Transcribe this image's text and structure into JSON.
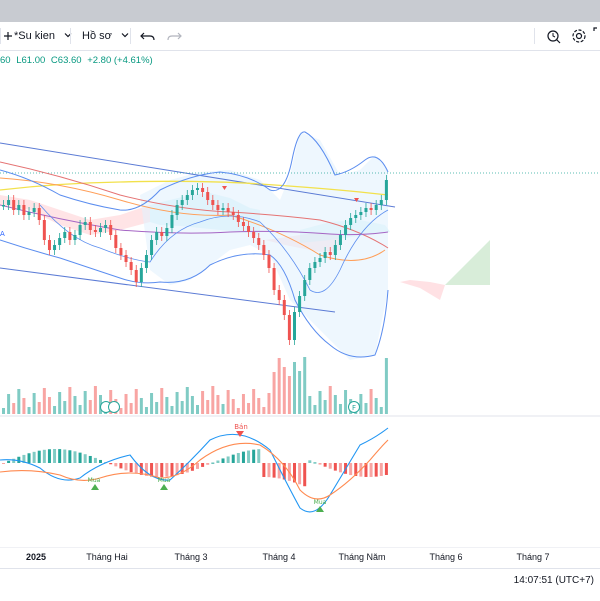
{
  "toolbar": {
    "events_label": "*Su kien",
    "profile_label": "Hồ sơ",
    "icons": [
      "plus-icon",
      "chevron-down-icon",
      "undo-icon",
      "redo-icon",
      "snapshot-icon",
      "settings-icon",
      "fullscreen-icon"
    ]
  },
  "ohlc": {
    "open_tail": "60",
    "low": "L61.00",
    "close": "C63.60",
    "change": "+2.80 (+4.61%)"
  },
  "xaxis": {
    "labels": [
      "2025",
      "Tháng Hai",
      "Tháng 3",
      "Tháng 4",
      "Tháng Năm",
      "Tháng 6",
      "Tháng 7"
    ]
  },
  "annotations": {
    "sell_label": "Bán",
    "buy_label": "Mua",
    "fin_badge": "F"
  },
  "clock": "14:07:51 (UTC+7)",
  "colors": {
    "up": "#26a69a",
    "down": "#ef5350",
    "accent": "#2962ff",
    "yellow": "#f2e14c"
  },
  "chart_data": {
    "type": "line",
    "title": "",
    "xlabel": "",
    "ylabel": "",
    "x": [
      "2025",
      "Tháng Hai",
      "Tháng 3",
      "Tháng 4",
      "Tháng Năm",
      "Tháng 6",
      "Tháng 7"
    ],
    "last_close": 63.6,
    "low": 61.0,
    "change": 2.8,
    "change_pct": 4.61,
    "legend": "none"
  }
}
